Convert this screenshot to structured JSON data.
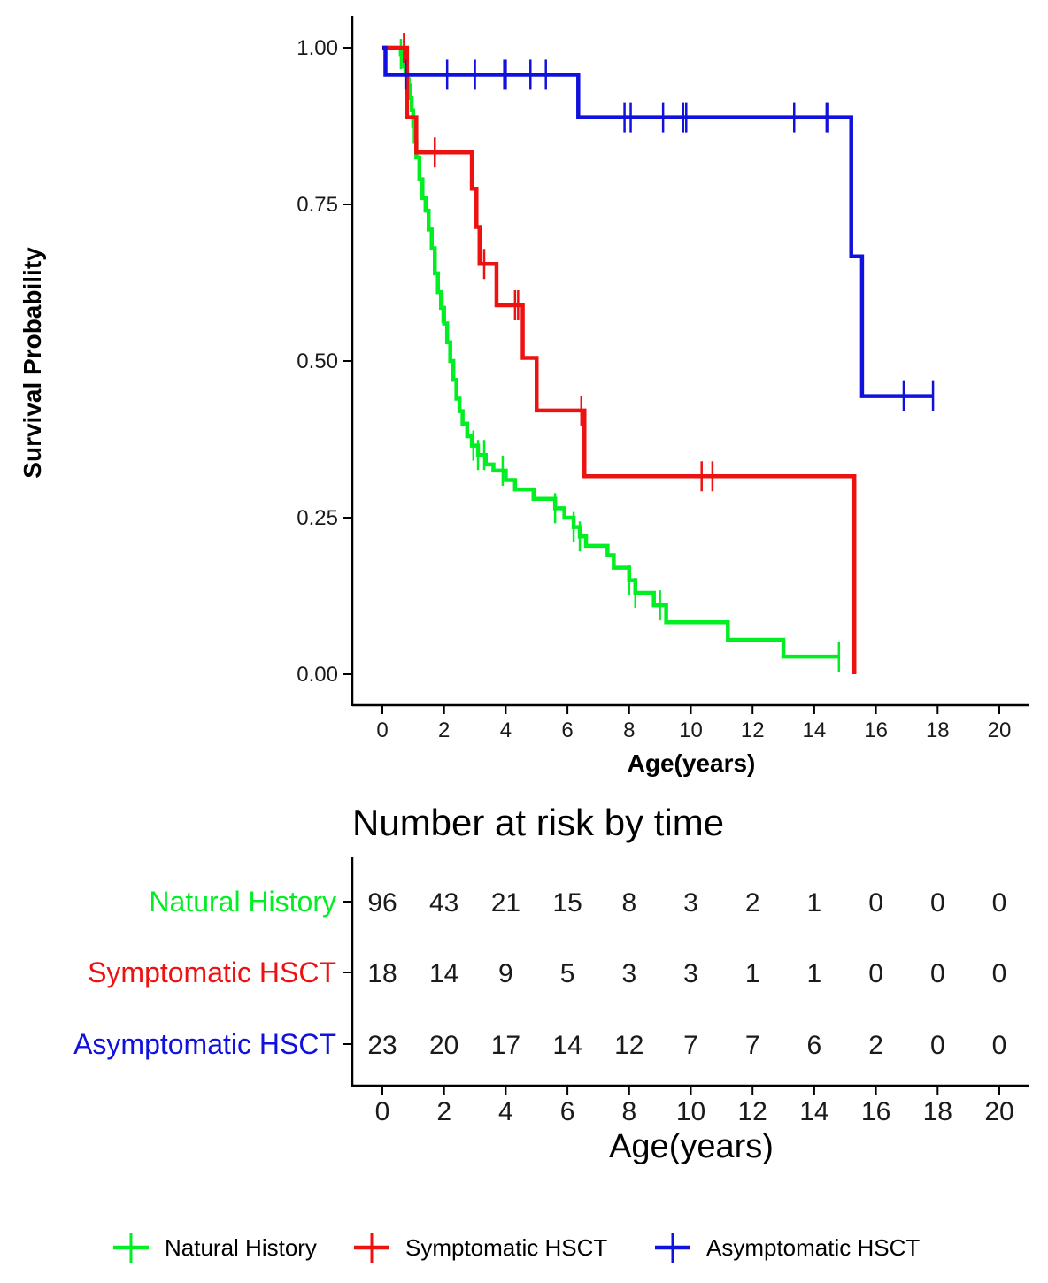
{
  "chart_data": [
    {
      "type": "line",
      "subtype": "kaplan-meier",
      "xlabel": "Age(years)",
      "ylabel": "Survival Probability",
      "xlim": [
        0,
        20
      ],
      "ylim": [
        0,
        1
      ],
      "xticks": [
        "0",
        "2",
        "4",
        "6",
        "8",
        "10",
        "12",
        "14",
        "16",
        "18",
        "20"
      ],
      "yticks": [
        "0.00",
        "0.25",
        "0.50",
        "0.75",
        "1.00"
      ],
      "grid": false,
      "legend": "bottom",
      "series": [
        {
          "name": "Natural History",
          "color": "#00ee22",
          "steps": [
            [
              0,
              1.0
            ],
            [
              0.55,
              1.0
            ],
            [
              0.6,
              0.99
            ],
            [
              0.65,
              0.98
            ],
            [
              0.7,
              0.97
            ],
            [
              0.75,
              0.96
            ],
            [
              0.8,
              0.95
            ],
            [
              0.85,
              0.94
            ],
            [
              0.9,
              0.92
            ],
            [
              0.95,
              0.9
            ],
            [
              1.0,
              0.875
            ],
            [
              1.05,
              0.85
            ],
            [
              1.1,
              0.825
            ],
            [
              1.2,
              0.79
            ],
            [
              1.3,
              0.76
            ],
            [
              1.4,
              0.74
            ],
            [
              1.5,
              0.71
            ],
            [
              1.6,
              0.68
            ],
            [
              1.7,
              0.64
            ],
            [
              1.8,
              0.61
            ],
            [
              1.9,
              0.585
            ],
            [
              2.0,
              0.56
            ],
            [
              2.1,
              0.53
            ],
            [
              2.2,
              0.5
            ],
            [
              2.3,
              0.47
            ],
            [
              2.4,
              0.44
            ],
            [
              2.5,
              0.42
            ],
            [
              2.6,
              0.4
            ],
            [
              2.75,
              0.38
            ],
            [
              2.9,
              0.365
            ],
            [
              3.1,
              0.35
            ],
            [
              3.35,
              0.335
            ],
            [
              3.6,
              0.325
            ],
            [
              4.0,
              0.31
            ],
            [
              4.3,
              0.295
            ],
            [
              4.9,
              0.28
            ],
            [
              5.6,
              0.265
            ],
            [
              5.9,
              0.25
            ],
            [
              6.2,
              0.235
            ],
            [
              6.4,
              0.22
            ],
            [
              6.6,
              0.205
            ],
            [
              7.3,
              0.19
            ],
            [
              7.5,
              0.17
            ],
            [
              8.0,
              0.15
            ],
            [
              8.2,
              0.13
            ],
            [
              8.8,
              0.11
            ],
            [
              9.2,
              0.083
            ],
            [
              11.2,
              0.055
            ],
            [
              13.0,
              0.028
            ],
            [
              14.8,
              0.028
            ]
          ],
          "censored": [
            0.6,
            1.95,
            2.95,
            3.1,
            3.3,
            3.9,
            5.6,
            6.2,
            6.4,
            8.0,
            8.2,
            9.0,
            14.8
          ]
        },
        {
          "name": "Symptomatic HSCT",
          "color": "#ee1111",
          "steps": [
            [
              0,
              1.0
            ],
            [
              0.8,
              1.0
            ],
            [
              0.8,
              0.889
            ],
            [
              1.1,
              0.889
            ],
            [
              1.1,
              0.833
            ],
            [
              2.9,
              0.833
            ],
            [
              2.9,
              0.775
            ],
            [
              3.05,
              0.775
            ],
            [
              3.05,
              0.714
            ],
            [
              3.15,
              0.714
            ],
            [
              3.15,
              0.655
            ],
            [
              3.7,
              0.655
            ],
            [
              3.7,
              0.589
            ],
            [
              4.55,
              0.589
            ],
            [
              4.55,
              0.505
            ],
            [
              5.0,
              0.505
            ],
            [
              5.0,
              0.421
            ],
            [
              6.55,
              0.421
            ],
            [
              6.55,
              0.316
            ],
            [
              15.3,
              0.316
            ],
            [
              15.3,
              0.0
            ]
          ],
          "censored": [
            0.7,
            1.7,
            3.3,
            4.3,
            4.4,
            6.45,
            10.35,
            10.7
          ]
        },
        {
          "name": "Asymptomatic HSCT",
          "color": "#1111dd",
          "steps": [
            [
              0,
              1.0
            ],
            [
              0.1,
              1.0
            ],
            [
              0.1,
              0.957
            ],
            [
              6.35,
              0.957
            ],
            [
              6.35,
              0.889
            ],
            [
              15.2,
              0.889
            ],
            [
              15.2,
              0.667
            ],
            [
              15.55,
              0.667
            ],
            [
              15.55,
              0.444
            ],
            [
              17.85,
              0.444
            ]
          ],
          "censored": [
            0.75,
            2.1,
            3.0,
            3.95,
            4.0,
            4.8,
            5.3,
            7.85,
            8.05,
            9.1,
            9.75,
            9.85,
            13.35,
            14.4,
            14.45,
            16.9,
            17.85
          ]
        }
      ]
    },
    {
      "type": "table",
      "title": "Number at risk by time",
      "xlabel": "Age(years)",
      "xticks": [
        "0",
        "2",
        "4",
        "6",
        "8",
        "10",
        "12",
        "14",
        "16",
        "18",
        "20"
      ],
      "rows": [
        {
          "name": "Natural History",
          "color": "#00ee22",
          "values": [
            "96",
            "43",
            "21",
            "15",
            "8",
            "3",
            "2",
            "1",
            "0",
            "0",
            "0"
          ]
        },
        {
          "name": "Symptomatic HSCT",
          "color": "#ee1111",
          "values": [
            "18",
            "14",
            "9",
            "5",
            "3",
            "3",
            "1",
            "1",
            "0",
            "0",
            "0"
          ]
        },
        {
          "name": "Asymptomatic HSCT",
          "color": "#1111dd",
          "values": [
            "23",
            "20",
            "17",
            "14",
            "12",
            "7",
            "7",
            "6",
            "2",
            "0",
            "0"
          ]
        }
      ]
    }
  ]
}
